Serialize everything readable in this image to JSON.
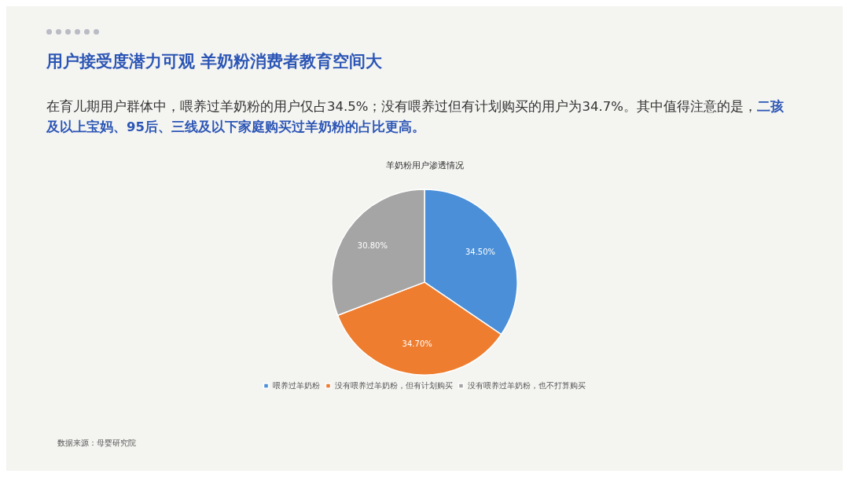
{
  "chart_data": {
    "type": "pie",
    "title": "用户接受度潜力可观 羊奶粉消费者教育空间大",
    "subtitle": "羊奶粉用户渗透情况",
    "categories": [
      "喂养过羊奶粉",
      "没有喂养过羊奶粉，但有计划购买",
      "没有喂养过羊奶粉，也不打算购买"
    ],
    "values": [
      34.5,
      34.7,
      30.8
    ],
    "colors": [
      "#4a8fd8",
      "#ee7d2f",
      "#a5a5a5"
    ],
    "value_labels": [
      "34.50%",
      "34.70%",
      "30.80%"
    ],
    "legend": "bottom",
    "annotations": [
      "在育儿期用户群体中，喂养过羊奶粉的用户仅占34.5%；没有喂养过但有计划购买的用户为34.7%。其中值得注意的是，",
      "二孩及以上宝妈、95后、三线及以下家庭购买过羊奶粉的占比更高。",
      "数据来源：母婴研究院"
    ]
  }
}
